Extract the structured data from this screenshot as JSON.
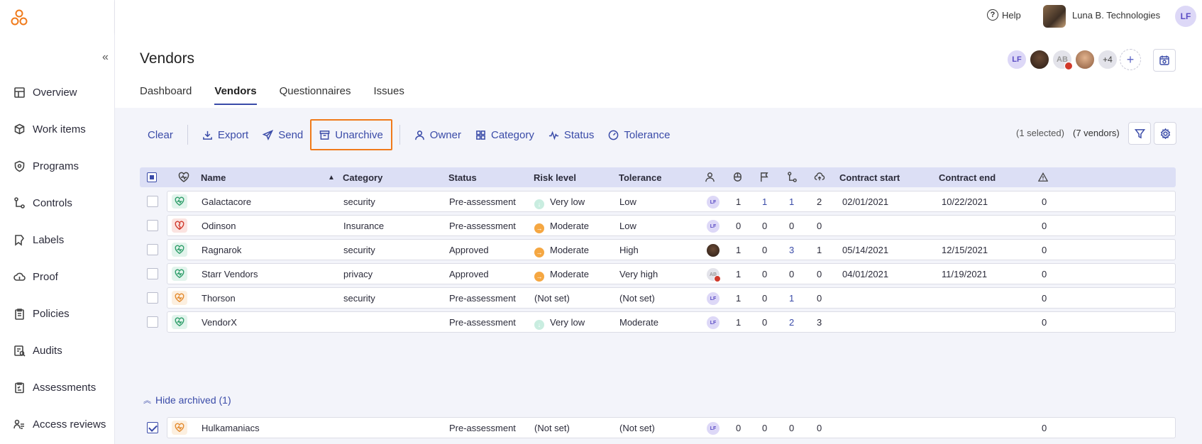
{
  "sidebar": {
    "items": [
      {
        "label": "Overview",
        "icon": "layout-icon"
      },
      {
        "label": "Work items",
        "icon": "box-icon"
      },
      {
        "label": "Programs",
        "icon": "shield-icon"
      },
      {
        "label": "Controls",
        "icon": "flow-icon"
      },
      {
        "label": "Labels",
        "icon": "tag-icon"
      },
      {
        "label": "Proof",
        "icon": "cloud-icon"
      },
      {
        "label": "Policies",
        "icon": "clipboard-icon"
      },
      {
        "label": "Audits",
        "icon": "audit-icon"
      },
      {
        "label": "Assessments",
        "icon": "checklist-icon"
      },
      {
        "label": "Access reviews",
        "icon": "access-icon"
      }
    ]
  },
  "topbar": {
    "help": "Help",
    "org_name": "Luna B. Technologies",
    "user_initials": "LF"
  },
  "header": {
    "title": "Vendors",
    "tabs": [
      {
        "label": "Dashboard",
        "active": false
      },
      {
        "label": "Vendors",
        "active": true
      },
      {
        "label": "Questionnaires",
        "active": false
      },
      {
        "label": "Issues",
        "active": false
      }
    ],
    "collaborators": {
      "first_initials": "LF",
      "ab_initials": "AB",
      "more": "+4",
      "add": "+"
    }
  },
  "toolbar": {
    "clear": "Clear",
    "export": "Export",
    "send": "Send",
    "unarchive": "Unarchive",
    "owner": "Owner",
    "category": "Category",
    "status": "Status",
    "tolerance": "Tolerance",
    "selected": "(1 selected)",
    "count": "(7 vendors)"
  },
  "table": {
    "headers": {
      "name": "Name",
      "category": "Category",
      "status": "Status",
      "risk": "Risk level",
      "tolerance": "Tolerance",
      "contract_start": "Contract start",
      "contract_end": "Contract end"
    },
    "rows": [
      {
        "name": "Galactacore",
        "category": "security",
        "status": "Pre-assessment",
        "risk": "Very low",
        "risk_kind": "low",
        "tolerance": "Low",
        "owner": "LF",
        "c1": "1",
        "c2": "1",
        "c3": "1",
        "c4": "2",
        "start": "02/01/2021",
        "end": "10/22/2021",
        "issues": "0",
        "icon_color": "#2e9e6a",
        "icon_bg": "#e2f4ec"
      },
      {
        "name": "Odinson",
        "category": "Insurance",
        "status": "Pre-assessment",
        "risk": "Moderate",
        "risk_kind": "mod",
        "tolerance": "Low",
        "owner": "LF",
        "c1": "0",
        "c2": "0",
        "c3": "0",
        "c4": "0",
        "start": "",
        "end": "",
        "issues": "0",
        "icon_color": "#d0392b",
        "icon_bg": "#fbe3e0"
      },
      {
        "name": "Ragnarok",
        "category": "security",
        "status": "Approved",
        "risk": "Moderate",
        "risk_kind": "mod",
        "tolerance": "High",
        "owner": "photo",
        "c1": "1",
        "c2": "0",
        "c3": "3",
        "c4": "1",
        "start": "05/14/2021",
        "end": "12/15/2021",
        "issues": "0",
        "icon_color": "#2e9e6a",
        "icon_bg": "#e2f4ec"
      },
      {
        "name": "Starr Vendors",
        "category": "privacy",
        "status": "Approved",
        "risk": "Moderate",
        "risk_kind": "mod",
        "tolerance": "Very high",
        "owner": "AB",
        "c1": "1",
        "c2": "0",
        "c3": "0",
        "c4": "0",
        "start": "04/01/2021",
        "end": "11/19/2021",
        "issues": "0",
        "icon_color": "#2e9e6a",
        "icon_bg": "#e2f4ec"
      },
      {
        "name": "Thorson",
        "category": "security",
        "status": "Pre-assessment",
        "risk": "(Not set)",
        "risk_kind": "none",
        "tolerance": "(Not set)",
        "owner": "LF",
        "c1": "1",
        "c2": "0",
        "c3": "1",
        "c4": "0",
        "start": "",
        "end": "",
        "issues": "0",
        "icon_color": "#e38a2e",
        "icon_bg": "#fcefdf"
      },
      {
        "name": "VendorX",
        "category": "",
        "status": "Pre-assessment",
        "risk": "Very low",
        "risk_kind": "low",
        "tolerance": "Moderate",
        "owner": "LF",
        "c1": "1",
        "c2": "0",
        "c3": "2",
        "c4": "3",
        "start": "",
        "end": "",
        "issues": "0",
        "icon_color": "#2e9e6a",
        "icon_bg": "#e2f4ec"
      }
    ],
    "hide_archived": "Hide archived (1)",
    "archived": [
      {
        "name": "Hulkamaniacs",
        "category": "",
        "status": "Pre-assessment",
        "risk": "(Not set)",
        "risk_kind": "none",
        "tolerance": "(Not set)",
        "owner": "LF",
        "c1": "0",
        "c2": "0",
        "c3": "0",
        "c4": "0",
        "start": "",
        "end": "",
        "issues": "0",
        "icon_color": "#e38a2e",
        "icon_bg": "#fcefdf"
      }
    ]
  },
  "colors": {
    "accent": "#3a4ba8",
    "highlight": "#f07a1a"
  }
}
